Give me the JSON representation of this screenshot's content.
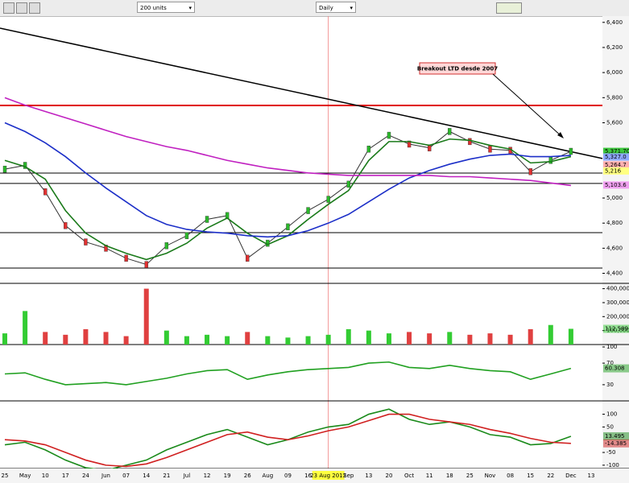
{
  "toolbar": {
    "units": "200 units",
    "period": "Daily"
  },
  "chart_data": [
    {
      "type": "line",
      "categories": [
        "25",
        "May",
        "10",
        "17",
        "24",
        "Jun",
        "07",
        "14",
        "21",
        "Jul",
        "12",
        "19",
        "26",
        "Aug",
        "09",
        "16",
        "23 Aug 2012",
        "Sep",
        "13",
        "20",
        "Oct",
        "11",
        "18",
        "25",
        "Nov",
        "08",
        "15",
        "22",
        "Dec",
        "13"
      ],
      "series": [
        {
          "name": "Close",
          "color": "#333333",
          "values": [
            5230,
            5260,
            5050,
            4780,
            4650,
            4600,
            4520,
            4470,
            4620,
            4700,
            4830,
            4860,
            4520,
            4640,
            4770,
            4900,
            4990,
            5110,
            5390,
            5500,
            5430,
            5400,
            5530,
            5450,
            5390,
            5380,
            5210,
            5300,
            5372,
            null
          ]
        },
        {
          "name": "MA short",
          "color": "#1a7a1a",
          "values": [
            5300,
            5250,
            5150,
            4900,
            4720,
            4620,
            4560,
            4510,
            4560,
            4640,
            4760,
            4840,
            4720,
            4630,
            4700,
            4830,
            4950,
            5060,
            5300,
            5450,
            5450,
            5420,
            5470,
            5460,
            5420,
            5390,
            5280,
            5290,
            5330,
            null
          ]
        },
        {
          "name": "MA 50",
          "color": "#1c2fc8",
          "values": [
            5600,
            5530,
            5440,
            5330,
            5200,
            5080,
            4970,
            4860,
            4790,
            4750,
            4730,
            4720,
            4700,
            4690,
            4700,
            4740,
            4800,
            4870,
            4970,
            5070,
            5160,
            5220,
            5270,
            5310,
            5340,
            5350,
            5330,
            5330,
            5340,
            null
          ]
        },
        {
          "name": "MA 200",
          "color": "#c020c0",
          "values": [
            5800,
            5740,
            5690,
            5640,
            5590,
            5540,
            5490,
            5450,
            5410,
            5380,
            5340,
            5300,
            5270,
            5240,
            5220,
            5200,
            5190,
            5180,
            5180,
            5180,
            5180,
            5180,
            5170,
            5170,
            5160,
            5150,
            5140,
            5120,
            5100,
            null
          ]
        }
      ],
      "ylim": [
        4320,
        6450
      ],
      "yticks": [
        {
          "value": 6400,
          "label": "6,400"
        },
        {
          "value": 6200,
          "label": "6,200"
        },
        {
          "value": 6000,
          "label": "6,000"
        },
        {
          "value": 5800,
          "label": "5,800"
        },
        {
          "value": 5600,
          "label": "5,600"
        },
        {
          "value": 5000,
          "label": "5,000"
        },
        {
          "value": 4800,
          "label": "4,800"
        },
        {
          "value": 4600,
          "label": "4,600"
        },
        {
          "value": 4400,
          "label": "4,400"
        }
      ],
      "levels": [
        {
          "value": 5738,
          "color": "#e00000"
        },
        {
          "value": 5199,
          "color": "#000000"
        },
        {
          "value": 5116,
          "color": "#000000"
        },
        {
          "value": 4724,
          "color": "#000000"
        },
        {
          "value": 4442,
          "color": "#000000"
        }
      ],
      "trendline": [
        6354,
        5315
      ],
      "annotation": "Breakout LTD desde 2007",
      "price_labels": [
        {
          "value": 5371.7,
          "label": "5,371.70"
        },
        {
          "value": 5327,
          "label": "5,327.0"
        },
        {
          "value": 5264.7,
          "label": "5,264.7"
        },
        {
          "value": 5216,
          "label": "5,216"
        },
        {
          "value": 5103.6,
          "label": "5,103.6"
        }
      ],
      "price_label_colors": [
        "#3ec83e",
        "#8fa8ff",
        "#ffb0b0",
        "#ffff80",
        "#f0a0f0"
      ]
    },
    {
      "type": "bar",
      "series": [
        {
          "name": "Volume",
          "color": "#33cc33",
          "values": [
            80000,
            240000,
            90000,
            70000,
            110000,
            90000,
            60000,
            400000,
            100000,
            60000,
            70000,
            60000,
            90000,
            60000,
            50000,
            60000,
            70000,
            110000,
            100000,
            80000,
            90000,
            80000,
            90000,
            70000,
            80000,
            70000,
            110000,
            140000,
            112589,
            null
          ],
          "value_labels": [
            null,
            null,
            null,
            null,
            null,
            null,
            null,
            null,
            null,
            null,
            null,
            null,
            null,
            null,
            null,
            null,
            null,
            null,
            null,
            null,
            null,
            null,
            null,
            null,
            null,
            null,
            null,
            null,
            "112,589",
            null
          ]
        }
      ],
      "ylim": [
        0,
        415000
      ],
      "yticks": [
        {
          "value": 400000,
          "label": "400,000"
        },
        {
          "value": 300000,
          "label": "300,000"
        },
        {
          "value": 200000,
          "label": "200,000"
        },
        {
          "value": 100000,
          "label": "100,000"
        }
      ]
    },
    {
      "type": "line",
      "series": [
        {
          "name": "RSI",
          "color": "#20a020",
          "values": [
            50,
            52,
            40,
            30,
            32,
            34,
            30,
            36,
            42,
            50,
            56,
            58,
            40,
            48,
            54,
            58,
            60,
            62,
            70,
            72,
            62,
            60,
            66,
            60,
            56,
            54,
            40,
            50,
            60.308,
            null
          ],
          "value_labels": [
            null,
            null,
            null,
            null,
            null,
            null,
            null,
            null,
            null,
            null,
            null,
            null,
            null,
            null,
            null,
            null,
            null,
            null,
            null,
            null,
            null,
            null,
            null,
            null,
            null,
            null,
            null,
            null,
            "60.308",
            null
          ]
        }
      ],
      "ylim": [
        0,
        100
      ],
      "yticks": [
        100,
        70,
        30
      ]
    },
    {
      "type": "line",
      "series": [
        {
          "name": "MACD",
          "color": "#1a8a1a",
          "values": [
            -20,
            -10,
            -40,
            -80,
            -110,
            -120,
            -100,
            -80,
            -40,
            -10,
            20,
            40,
            10,
            -20,
            0,
            30,
            50,
            60,
            100,
            120,
            80,
            60,
            70,
            50,
            20,
            10,
            -20,
            -15,
            13.495,
            null
          ],
          "value_labels": [
            null,
            null,
            null,
            null,
            null,
            null,
            null,
            null,
            null,
            null,
            null,
            null,
            null,
            null,
            null,
            null,
            null,
            null,
            null,
            null,
            null,
            null,
            null,
            null,
            null,
            null,
            null,
            null,
            "13.495",
            null
          ]
        },
        {
          "name": "Signal",
          "color": "#d02020",
          "values": [
            0,
            -5,
            -20,
            -50,
            -80,
            -100,
            -105,
            -95,
            -70,
            -40,
            -10,
            20,
            30,
            10,
            0,
            15,
            35,
            50,
            75,
            100,
            100,
            80,
            70,
            60,
            40,
            25,
            5,
            -10,
            -14.385,
            null
          ],
          "value_labels": [
            null,
            null,
            null,
            null,
            null,
            null,
            null,
            null,
            null,
            null,
            null,
            null,
            null,
            null,
            null,
            null,
            null,
            null,
            null,
            null,
            null,
            null,
            null,
            null,
            null,
            null,
            null,
            null,
            "-14.385",
            null
          ]
        }
      ],
      "ylim": [
        -113,
        146
      ],
      "yticks": [
        100,
        50,
        -50,
        -100
      ]
    }
  ]
}
